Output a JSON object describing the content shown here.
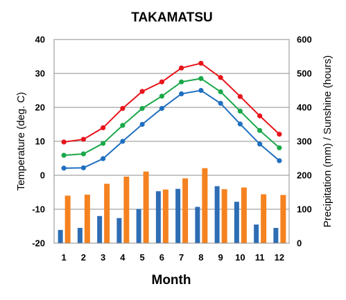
{
  "chart_data": {
    "type": "bar+line",
    "title": "TAKAMATSU",
    "xlabel": "Month",
    "ylabel_left": "Temperature (deg. C)",
    "ylabel_right": "Precipitation (mm) / Sunshine (hours)",
    "ylim_left": [
      -20,
      40
    ],
    "ylim_right": [
      0,
      600
    ],
    "yticks_left": [
      "40",
      "30",
      "20",
      "10",
      "0",
      "-10",
      "-20"
    ],
    "yticks_right": [
      "600",
      "500",
      "400",
      "300",
      "200",
      "100",
      "0"
    ],
    "grid": true,
    "categories": [
      "1",
      "2",
      "3",
      "4",
      "5",
      "6",
      "7",
      "8",
      "9",
      "10",
      "11",
      "12"
    ],
    "line_series": [
      {
        "color": "#e8141b",
        "values": [
          9.8,
          10.6,
          14.0,
          19.7,
          24.7,
          27.5,
          31.6,
          33.0,
          28.8,
          23.2,
          17.5,
          12.1
        ]
      },
      {
        "color": "#1aa84a",
        "values": [
          5.9,
          6.3,
          9.4,
          14.7,
          19.7,
          23.3,
          27.5,
          28.5,
          24.6,
          18.9,
          13.2,
          8.1
        ]
      },
      {
        "color": "#1f6fc0",
        "values": [
          2.1,
          2.2,
          4.9,
          10.0,
          15.0,
          19.7,
          24.0,
          25.0,
          21.2,
          15.1,
          9.2,
          4.3
        ]
      }
    ],
    "bar_series": [
      {
        "color": "#2e6db4",
        "values": [
          39,
          45,
          80,
          74,
          101,
          153,
          160,
          107,
          168,
          122,
          55,
          45
        ]
      },
      {
        "color": "#f58220",
        "values": [
          140,
          143,
          175,
          196,
          211,
          158,
          191,
          221,
          159,
          164,
          144,
          142
        ]
      }
    ]
  }
}
